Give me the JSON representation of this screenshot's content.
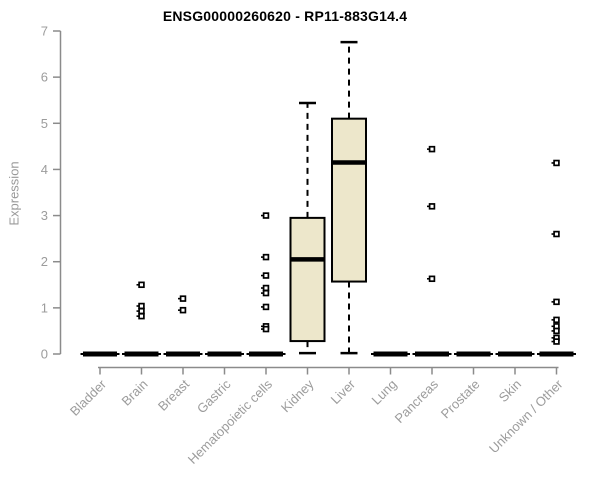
{
  "chart_data": {
    "type": "boxplot",
    "title": "ENSG00000260620 - RP11-883G14.4",
    "ylabel": "Expression",
    "xlabel": "",
    "ylim": [
      0,
      7
    ],
    "yticks": [
      0,
      1,
      2,
      3,
      4,
      5,
      6,
      7
    ],
    "grid": false,
    "x_label_rotation": -45,
    "categories": [
      "Bladder",
      "Brain",
      "Breast",
      "Gastric",
      "Hematopoietic cells",
      "Kidney",
      "Liver",
      "Lung",
      "Pancreas",
      "Prostate",
      "Skin",
      "Unknown / Other"
    ],
    "boxes": [
      {
        "category": "Bladder",
        "q1": 0,
        "median": 0,
        "q3": 0,
        "whisker_low": 0,
        "whisker_high": 0,
        "outliers": []
      },
      {
        "category": "Brain",
        "q1": 0,
        "median": 0,
        "q3": 0,
        "whisker_low": 0,
        "whisker_high": 0,
        "outliers": [
          1.5,
          1.04,
          0.93,
          0.82
        ]
      },
      {
        "category": "Breast",
        "q1": 0,
        "median": 0,
        "q3": 0,
        "whisker_low": 0,
        "whisker_high": 0,
        "outliers": [
          1.2,
          0.95
        ]
      },
      {
        "category": "Gastric",
        "q1": 0,
        "median": 0,
        "q3": 0,
        "whisker_low": 0,
        "whisker_high": 0,
        "outliers": []
      },
      {
        "category": "Hematopoietic cells",
        "q1": 0,
        "median": 0,
        "q3": 0,
        "whisker_low": 0,
        "whisker_high": 0,
        "outliers": [
          3.0,
          2.1,
          1.7,
          1.43,
          1.32,
          1.02,
          0.6,
          0.54
        ]
      },
      {
        "category": "Kidney",
        "q1": 0.28,
        "median": 2.05,
        "q3": 2.95,
        "whisker_low": 0.02,
        "whisker_high": 5.44,
        "outliers": []
      },
      {
        "category": "Liver",
        "q1": 1.57,
        "median": 4.15,
        "q3": 5.1,
        "whisker_low": 0.02,
        "whisker_high": 6.76,
        "outliers": []
      },
      {
        "category": "Lung",
        "q1": 0,
        "median": 0,
        "q3": 0,
        "whisker_low": 0,
        "whisker_high": 0,
        "outliers": []
      },
      {
        "category": "Pancreas",
        "q1": 0,
        "median": 0,
        "q3": 0,
        "whisker_low": 0,
        "whisker_high": 0,
        "outliers": [
          4.44,
          3.2,
          1.63
        ]
      },
      {
        "category": "Prostate",
        "q1": 0,
        "median": 0,
        "q3": 0,
        "whisker_low": 0,
        "whisker_high": 0,
        "outliers": []
      },
      {
        "category": "Skin",
        "q1": 0,
        "median": 0,
        "q3": 0,
        "whisker_low": 0,
        "whisker_high": 0,
        "outliers": []
      },
      {
        "category": "Unknown / Other",
        "q1": 0,
        "median": 0,
        "q3": 0,
        "whisker_low": 0,
        "whisker_high": 0,
        "outliers": [
          4.14,
          2.6,
          1.13,
          0.74,
          0.6,
          0.5,
          0.35,
          0.27
        ]
      }
    ],
    "colors": {
      "box_fill": "#EDE7CB",
      "box_stroke": "#000000",
      "median": "#000000",
      "whisker": "#000000",
      "outlier_fill": "#ffffff",
      "axis": "#8B8B8B",
      "tick_text": "#9C9C9C",
      "title": "#000000",
      "background": "#ffffff"
    }
  }
}
